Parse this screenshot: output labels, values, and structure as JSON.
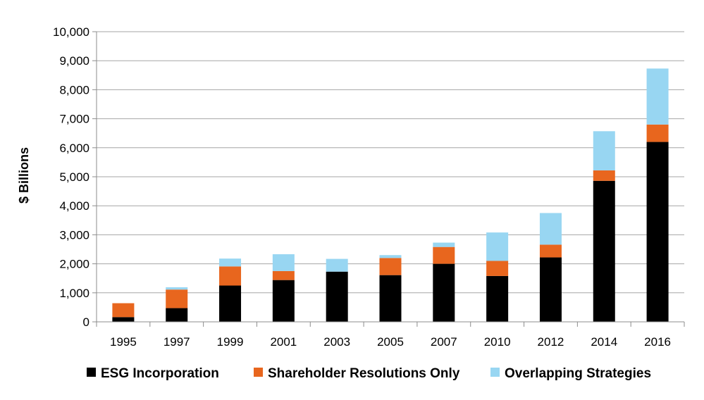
{
  "chart_data": {
    "type": "bar",
    "stacked": true,
    "title": "",
    "xlabel": "",
    "ylabel": "$ Billions",
    "ylim": [
      0,
      10000
    ],
    "yticks": [
      0,
      1000,
      2000,
      3000,
      4000,
      5000,
      6000,
      7000,
      8000,
      9000,
      10000
    ],
    "ytick_labels": [
      "0",
      "1,000",
      "2,000",
      "3,000",
      "4,000",
      "5,000",
      "6,000",
      "7,000",
      "8,000",
      "9,000",
      "10,000"
    ],
    "grid": true,
    "legend_position": "bottom",
    "categories": [
      "1995",
      "1997",
      "1999",
      "2001",
      "2003",
      "2005",
      "2007",
      "2010",
      "2012",
      "2014",
      "2016"
    ],
    "series": [
      {
        "name": "ESG Incorporation",
        "color": "#000000",
        "values": [
          162,
          472,
          1250,
          1440,
          1730,
          1610,
          2000,
          1580,
          2220,
          4860,
          6200
        ]
      },
      {
        "name": "Shareholder Resolutions Only",
        "color": "#E8661E",
        "values": [
          480,
          640,
          660,
          310,
          0,
          590,
          580,
          520,
          440,
          360,
          600
        ]
      },
      {
        "name": "Overlapping Strategies",
        "color": "#98D6F2",
        "values": [
          0,
          80,
          270,
          580,
          440,
          100,
          150,
          980,
          1090,
          1350,
          1930
        ]
      }
    ]
  }
}
